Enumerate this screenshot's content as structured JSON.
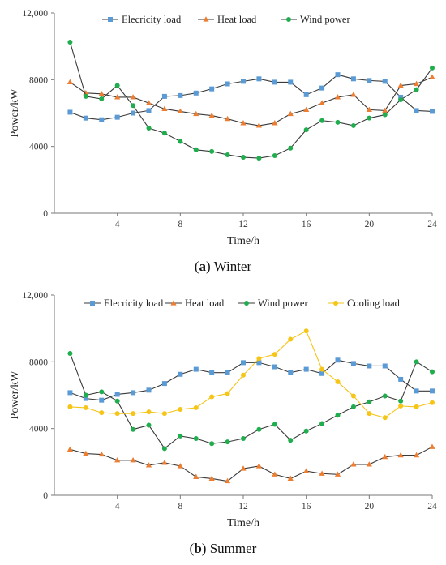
{
  "chart_data": [
    {
      "type": "line",
      "caption_letter": "a",
      "caption_text": "Winter",
      "xlabel": "Time/h",
      "ylabel": "Power/kW",
      "xlim": [
        0,
        24
      ],
      "ylim": [
        0,
        12000
      ],
      "x_ticks": [
        "4",
        "8",
        "12",
        "16",
        "20",
        "24"
      ],
      "y_ticks": [
        "0",
        "4000",
        "8000",
        "12,000"
      ],
      "legend_position": "top",
      "x": [
        1,
        2,
        3,
        4,
        5,
        6,
        7,
        8,
        9,
        10,
        11,
        12,
        13,
        14,
        15,
        16,
        17,
        18,
        19,
        20,
        21,
        22,
        23,
        24
      ],
      "series": [
        {
          "name": "Elecricity load",
          "color": "#5b9bd5",
          "marker": "square",
          "values": [
            6050,
            5700,
            5600,
            5750,
            6000,
            6150,
            7000,
            7050,
            7200,
            7450,
            7750,
            7900,
            8050,
            7850,
            7850,
            7100,
            7500,
            8300,
            8050,
            7950,
            7900,
            6950,
            6150,
            6100
          ]
        },
        {
          "name": "Heat load",
          "color": "#ed7d31",
          "marker": "triangle",
          "values": [
            7850,
            7200,
            7150,
            6950,
            6950,
            6600,
            6250,
            6100,
            5950,
            5850,
            5650,
            5400,
            5250,
            5400,
            5950,
            6200,
            6600,
            6950,
            7100,
            6200,
            6150,
            7650,
            7750,
            8150
          ]
        },
        {
          "name": "Wind power",
          "color": "#1fad4e",
          "marker": "circle",
          "values": [
            10250,
            7000,
            6850,
            7650,
            6450,
            5100,
            4800,
            4300,
            3800,
            3700,
            3500,
            3350,
            3300,
            3450,
            3900,
            5000,
            5550,
            5450,
            5250,
            5700,
            5900,
            6800,
            7400,
            8700
          ]
        }
      ]
    },
    {
      "type": "line",
      "caption_letter": "b",
      "caption_text": "Summer",
      "xlabel": "Time/h",
      "ylabel": "Power/kW",
      "xlim": [
        0,
        24
      ],
      "ylim": [
        0,
        12000
      ],
      "x_ticks": [
        "4",
        "8",
        "12",
        "16",
        "20",
        "24"
      ],
      "y_ticks": [
        "0",
        "4000",
        "8000",
        "12,000"
      ],
      "legend_position": "top",
      "x": [
        1,
        2,
        3,
        4,
        5,
        6,
        7,
        8,
        9,
        10,
        11,
        12,
        13,
        14,
        15,
        16,
        17,
        18,
        19,
        20,
        21,
        22,
        23,
        24
      ],
      "series": [
        {
          "name": "Elecricity load",
          "color": "#5b9bd5",
          "marker": "square",
          "values": [
            6150,
            5800,
            5700,
            6050,
            6150,
            6300,
            6700,
            7250,
            7550,
            7350,
            7350,
            7950,
            7950,
            7700,
            7350,
            7550,
            7300,
            8100,
            7900,
            7750,
            7750,
            6950,
            6250,
            6250
          ]
        },
        {
          "name": "Heat load",
          "color": "#ed7d31",
          "marker": "triangle",
          "values": [
            2750,
            2500,
            2450,
            2100,
            2100,
            1800,
            1950,
            1750,
            1100,
            1000,
            850,
            1600,
            1750,
            1250,
            1000,
            1450,
            1300,
            1250,
            1850,
            1850,
            2300,
            2400,
            2400,
            2900
          ]
        },
        {
          "name": "Wind power",
          "color": "#1fad4e",
          "marker": "circle",
          "values": [
            8500,
            6000,
            6200,
            5650,
            3950,
            4200,
            2800,
            3550,
            3400,
            3100,
            3200,
            3400,
            3950,
            4250,
            3300,
            3850,
            4300,
            4800,
            5300,
            5600,
            5950,
            5650,
            8000,
            7400
          ]
        },
        {
          "name": "Cooling load",
          "color": "#f5c518",
          "marker": "circle",
          "values": [
            5300,
            5250,
            4950,
            4900,
            4900,
            5000,
            4900,
            5150,
            5250,
            5900,
            6100,
            7200,
            8200,
            8450,
            9350,
            9850,
            7550,
            6800,
            5950,
            4900,
            4650,
            5350,
            5300,
            5550
          ]
        }
      ]
    }
  ]
}
